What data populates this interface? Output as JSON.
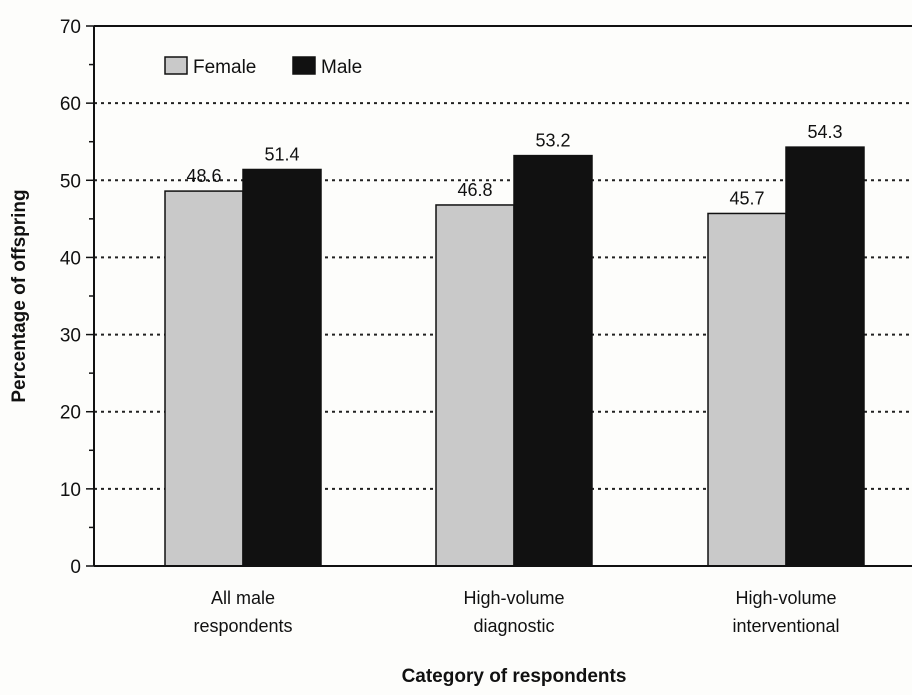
{
  "chart_data": {
    "type": "bar",
    "title": "",
    "xlabel": "Category of respondents",
    "ylabel": "Percentage of offspring",
    "ylim": [
      0,
      70
    ],
    "yticks": [
      0,
      10,
      20,
      30,
      40,
      50,
      60,
      70
    ],
    "grid": true,
    "legend_position": "top-left",
    "categories": [
      [
        "All male",
        "respondents"
      ],
      [
        "High-volume",
        "diagnostic"
      ],
      [
        "High-volume",
        "interventional"
      ]
    ],
    "series": [
      {
        "name": "Female",
        "color": "#c9c9c9",
        "values": [
          48.6,
          46.8,
          45.7
        ],
        "labels": [
          "48.6",
          "46.8",
          "45.7"
        ]
      },
      {
        "name": "Male",
        "color": "#111111",
        "values": [
          51.4,
          53.2,
          54.3
        ],
        "labels": [
          "51.4",
          "53.2",
          "54.3"
        ]
      }
    ]
  }
}
